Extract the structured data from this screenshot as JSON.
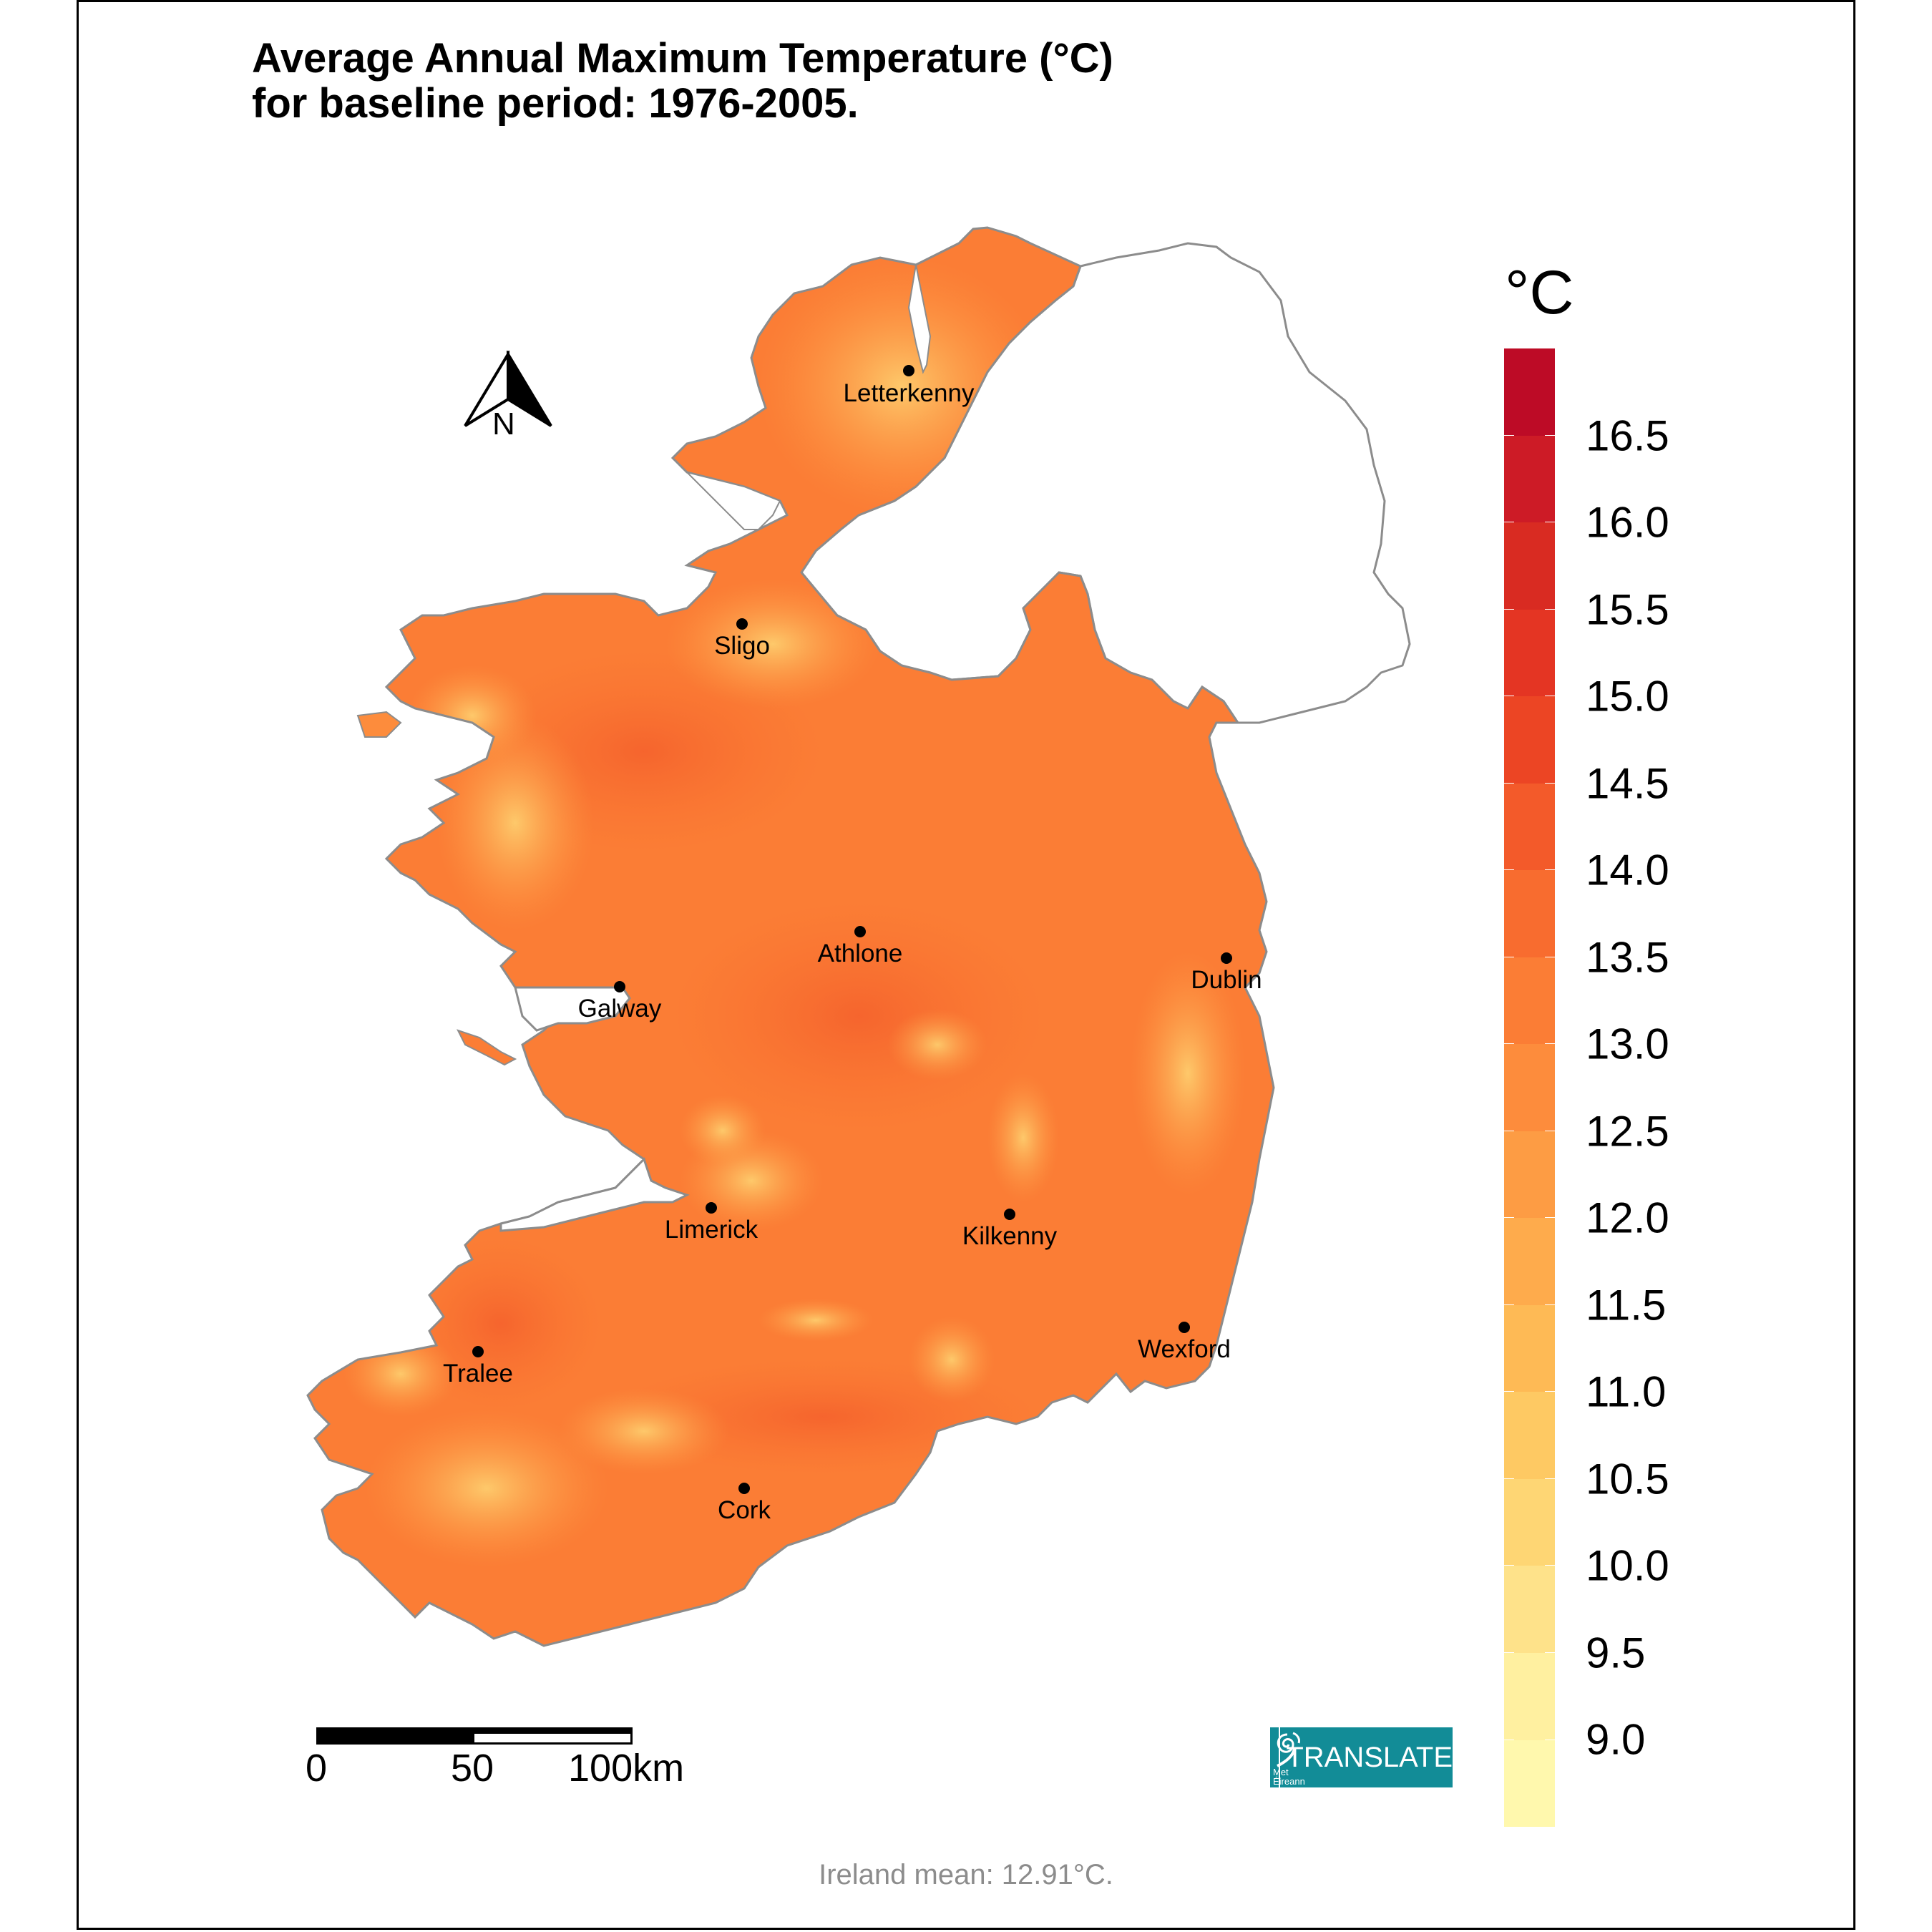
{
  "title": {
    "line1": "Average Annual Maximum Temperature (°C)",
    "line2": "for baseline period: 1976-2005."
  },
  "north_arrow": {
    "label": "N"
  },
  "cities": [
    {
      "name": "Letterkenny",
      "dot": [
        1270,
        518
      ],
      "label": [
        1270,
        530
      ]
    },
    {
      "name": "Sligo",
      "dot": [
        1037,
        872
      ],
      "label": [
        1037,
        883
      ]
    },
    {
      "name": "Athlone",
      "dot": [
        1202,
        1302
      ],
      "label": [
        1202,
        1313
      ]
    },
    {
      "name": "Dublin",
      "dot": [
        1714,
        1339
      ],
      "label": [
        1714,
        1350
      ]
    },
    {
      "name": "Galway",
      "dot": [
        866,
        1379
      ],
      "label": [
        866,
        1390
      ]
    },
    {
      "name": "Limerick",
      "dot": [
        994,
        1688
      ],
      "label": [
        994,
        1699
      ]
    },
    {
      "name": "Kilkenny",
      "dot": [
        1411,
        1697
      ],
      "label": [
        1411,
        1708
      ]
    },
    {
      "name": "Wexford",
      "dot": [
        1655,
        1855
      ],
      "label": [
        1655,
        1866
      ]
    },
    {
      "name": "Tralee",
      "dot": [
        668,
        1889
      ],
      "label": [
        668,
        1900
      ]
    },
    {
      "name": "Cork",
      "dot": [
        1040,
        2080
      ],
      "label": [
        1040,
        2091
      ]
    }
  ],
  "legend": {
    "title": "°C",
    "bins": [
      "#bd0b26",
      "#cd1b26",
      "#d92b22",
      "#e43523",
      "#ec4524",
      "#f35a2a",
      "#f86c2f",
      "#fb7d35",
      "#fd8c3c",
      "#fd9c44",
      "#feab4c",
      "#feba55",
      "#fec963",
      "#fed674",
      "#fee28a",
      "#fff0a0",
      "#fff8ad"
    ],
    "labels": [
      "16.5",
      "16.0",
      "15.5",
      "15.0",
      "14.5",
      "14.0",
      "13.5",
      "13.0",
      "12.5",
      "12.0",
      "11.5",
      "11.0",
      "10.5",
      "10.0",
      "9.5",
      "9.0"
    ]
  },
  "scalebar": {
    "labels": [
      "0",
      "50",
      "100km"
    ]
  },
  "logo": {
    "org": "Met Éireann",
    "text": "TRANSLATE",
    "color": "#128c97"
  },
  "footer": {
    "text": "Ireland mean: 12.91°C."
  },
  "chart_data": {
    "type": "heatmap",
    "title": "Average Annual Maximum Temperature (°C) for baseline period: 1976-2005.",
    "subtitle": "Ireland mean: 12.91°C.",
    "xlabel": "",
    "ylabel": "",
    "colorbar": {
      "label": "°C",
      "ticks": [
        9.0,
        9.5,
        10.0,
        10.5,
        11.0,
        11.5,
        12.0,
        12.5,
        13.0,
        13.5,
        14.0,
        14.5,
        15.0,
        15.5,
        16.0,
        16.5
      ],
      "range": [
        8.75,
        17.0
      ]
    },
    "mean": 12.91,
    "cities": [
      "Letterkenny",
      "Sligo",
      "Athlone",
      "Dublin",
      "Galway",
      "Limerick",
      "Kilkenny",
      "Wexford",
      "Tralee",
      "Cork"
    ],
    "scale_km": [
      0,
      50,
      100
    ],
    "grid": false,
    "legend_position": "right"
  }
}
